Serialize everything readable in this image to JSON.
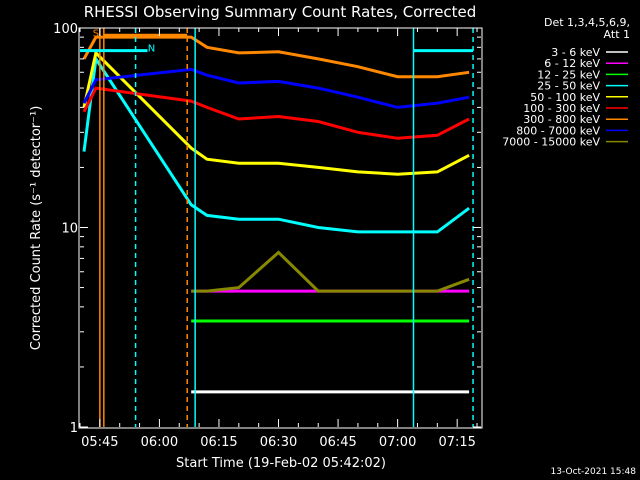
{
  "chart_data": {
    "type": "line",
    "title": "RHESSI Observing Summary Count Rates, Corrected",
    "xlabel": "Start Time (19-Feb-02 05:42:02)",
    "ylabel": "Corrected Count Rate (s⁻¹ detector⁻¹)",
    "yscale": "log",
    "ylim": [
      1,
      100
    ],
    "xlim": [
      "05:40",
      "07:21"
    ],
    "x_ticks": [
      "05:45",
      "06:00",
      "06:15",
      "06:30",
      "06:45",
      "07:00",
      "07:15"
    ],
    "y_ticks": [
      "1",
      "10",
      "100"
    ],
    "legend_header": [
      "Det 1,3,4,5,6,9,",
      "Att 1"
    ],
    "legend_position": "right",
    "grid": false,
    "series": [
      {
        "name": "3 - 6 keV",
        "color": "#ffffff",
        "points": [
          [
            "06:08",
            1.5
          ],
          [
            "06:12",
            1.5
          ],
          [
            "06:20",
            1.5
          ],
          [
            "06:30",
            1.5
          ],
          [
            "06:40",
            1.5
          ],
          [
            "06:50",
            1.5
          ],
          [
            "07:00",
            1.5
          ],
          [
            "07:10",
            1.5
          ],
          [
            "07:18",
            1.5
          ]
        ]
      },
      {
        "name": "6 - 12 keV",
        "color": "#ff00ff",
        "points": [
          [
            "06:08",
            4.8
          ],
          [
            "06:12",
            4.8
          ],
          [
            "06:20",
            4.8
          ],
          [
            "06:30",
            4.8
          ],
          [
            "06:40",
            4.8
          ],
          [
            "06:50",
            4.8
          ],
          [
            "07:00",
            4.8
          ],
          [
            "07:10",
            4.8
          ],
          [
            "07:18",
            4.8
          ]
        ]
      },
      {
        "name": "12 - 25 keV",
        "color": "#00ff00",
        "points": [
          [
            "06:08",
            3.4
          ],
          [
            "06:12",
            3.4
          ],
          [
            "06:20",
            3.4
          ],
          [
            "06:30",
            3.4
          ],
          [
            "06:40",
            3.4
          ],
          [
            "06:50",
            3.4
          ],
          [
            "07:00",
            3.4
          ],
          [
            "07:10",
            3.4
          ],
          [
            "07:18",
            3.4
          ]
        ]
      },
      {
        "name": "25 - 50 keV",
        "color": "#00ffff",
        "points": [
          [
            "05:41",
            24
          ],
          [
            "05:44",
            70
          ],
          [
            "06:08",
            13
          ],
          [
            "06:12",
            11.5
          ],
          [
            "06:20",
            11
          ],
          [
            "06:30",
            11
          ],
          [
            "06:40",
            10
          ],
          [
            "06:50",
            9.5
          ],
          [
            "07:00",
            9.5
          ],
          [
            "07:10",
            9.5
          ],
          [
            "07:18",
            12.5
          ]
        ]
      },
      {
        "name": "50 - 100 keV",
        "color": "#ffff00",
        "points": [
          [
            "05:41",
            40
          ],
          [
            "05:44",
            75
          ],
          [
            "06:08",
            25
          ],
          [
            "06:12",
            22
          ],
          [
            "06:20",
            21
          ],
          [
            "06:30",
            21
          ],
          [
            "06:40",
            20
          ],
          [
            "06:50",
            19
          ],
          [
            "07:00",
            18.5
          ],
          [
            "07:10",
            19
          ],
          [
            "07:18",
            23
          ]
        ]
      },
      {
        "name": "100 - 300 keV",
        "color": "#ff0000",
        "points": [
          [
            "05:41",
            38
          ],
          [
            "05:44",
            50
          ],
          [
            "06:08",
            43
          ],
          [
            "06:12",
            40
          ],
          [
            "06:20",
            35
          ],
          [
            "06:30",
            36
          ],
          [
            "06:40",
            34
          ],
          [
            "06:50",
            30
          ],
          [
            "07:00",
            28
          ],
          [
            "07:10",
            29
          ],
          [
            "07:18",
            35
          ]
        ]
      },
      {
        "name": "300 - 800 keV",
        "color": "#ff8800",
        "points": [
          [
            "05:41",
            70
          ],
          [
            "05:44",
            90
          ],
          [
            "06:08",
            90
          ],
          [
            "06:12",
            80
          ],
          [
            "06:20",
            75
          ],
          [
            "06:30",
            76
          ],
          [
            "06:40",
            70
          ],
          [
            "06:50",
            64
          ],
          [
            "07:00",
            57
          ],
          [
            "07:10",
            57
          ],
          [
            "07:18",
            60
          ]
        ]
      },
      {
        "name": "800 - 7000 keV",
        "color": "#0000ff",
        "points": [
          [
            "05:41",
            42
          ],
          [
            "05:44",
            55
          ],
          [
            "06:08",
            62
          ],
          [
            "06:12",
            58
          ],
          [
            "06:20",
            53
          ],
          [
            "06:30",
            54
          ],
          [
            "06:40",
            50
          ],
          [
            "06:50",
            45
          ],
          [
            "07:00",
            40
          ],
          [
            "07:10",
            42
          ],
          [
            "07:18",
            45
          ]
        ]
      },
      {
        "name": "7000 - 15000 keV",
        "color": "#888800",
        "points": [
          [
            "06:08",
            4.8
          ],
          [
            "06:12",
            4.8
          ],
          [
            "06:20",
            5.0
          ],
          [
            "06:30",
            7.5
          ],
          [
            "06:40",
            4.8
          ],
          [
            "06:50",
            4.8
          ],
          [
            "07:00",
            4.8
          ],
          [
            "07:10",
            4.8
          ],
          [
            "07:18",
            5.5
          ]
        ]
      }
    ],
    "annotations": [
      {
        "text": "S",
        "color": "#ff8800",
        "x": "05:44",
        "y": 95
      },
      {
        "text": "N",
        "color": "#00ffff",
        "x": "05:58",
        "y": 80
      }
    ],
    "segments": [
      {
        "color": "#ff8800",
        "x": [
          "05:46",
          "06:07"
        ],
        "y": 92
      },
      {
        "color": "#00ffff",
        "x": [
          "05:40",
          "05:57"
        ],
        "y": 77
      },
      {
        "color": "#00ffff",
        "x": [
          "07:04",
          "07:19"
        ],
        "y": 77
      }
    ],
    "markers_x": [
      {
        "x": "05:45",
        "color": "#ff8800",
        "style": "solid"
      },
      {
        "x": "05:46",
        "color": "#ff8800",
        "style": "solid"
      },
      {
        "x": "05:54",
        "color": "#00ffff",
        "style": "dashed"
      },
      {
        "x": "06:07",
        "color": "#ff8800",
        "style": "dashed"
      },
      {
        "x": "06:09",
        "color": "#00ffff",
        "style": "solid"
      },
      {
        "x": "07:04",
        "color": "#00ffff",
        "style": "solid"
      },
      {
        "x": "07:19",
        "color": "#00ffff",
        "style": "dashed"
      }
    ],
    "footer": "13-Oct-2021 15:48"
  }
}
